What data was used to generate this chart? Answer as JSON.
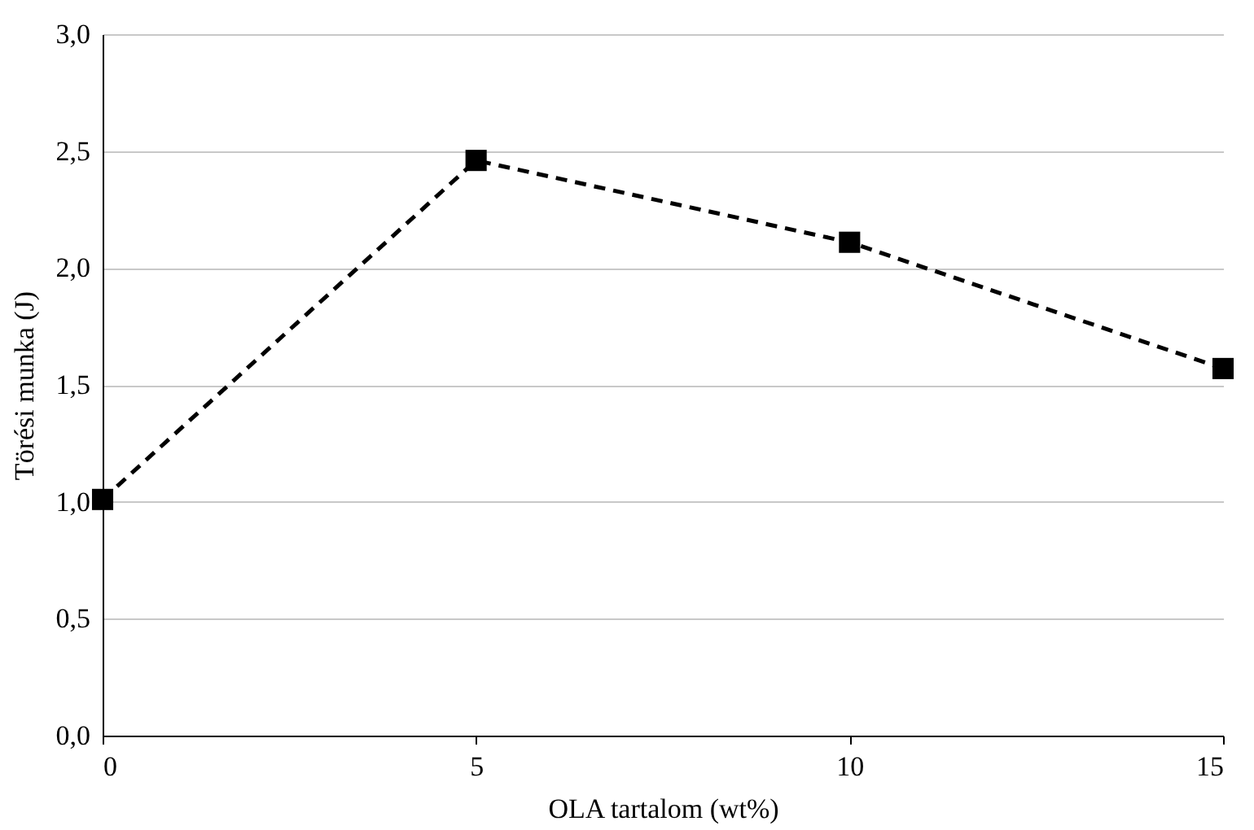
{
  "chart_data": {
    "type": "line",
    "xlabel": "OLA tartalom (wt%)",
    "ylabel": "Törési munka (J)",
    "x": [
      0,
      5,
      10,
      15
    ],
    "series": [
      {
        "color": "#000000",
        "values": [
          1.01,
          2.46,
          2.11,
          1.57
        ]
      }
    ],
    "xlim": [
      0,
      15
    ],
    "xticks": [
      0,
      5,
      10,
      15
    ],
    "ylim": [
      0,
      3
    ],
    "yticks": [
      {
        "value": 0,
        "label": "0,0"
      },
      {
        "value": 0.5,
        "label": "0,5"
      },
      {
        "value": 1,
        "label": "1,0"
      },
      {
        "value": 1.5,
        "label": "1,5"
      },
      {
        "value": 2,
        "label": "2,0"
      },
      {
        "value": 2.5,
        "label": "2,5"
      },
      {
        "value": 3,
        "label": "3,0"
      }
    ],
    "grid": "y",
    "marker": "square",
    "line_style": "dashed"
  }
}
